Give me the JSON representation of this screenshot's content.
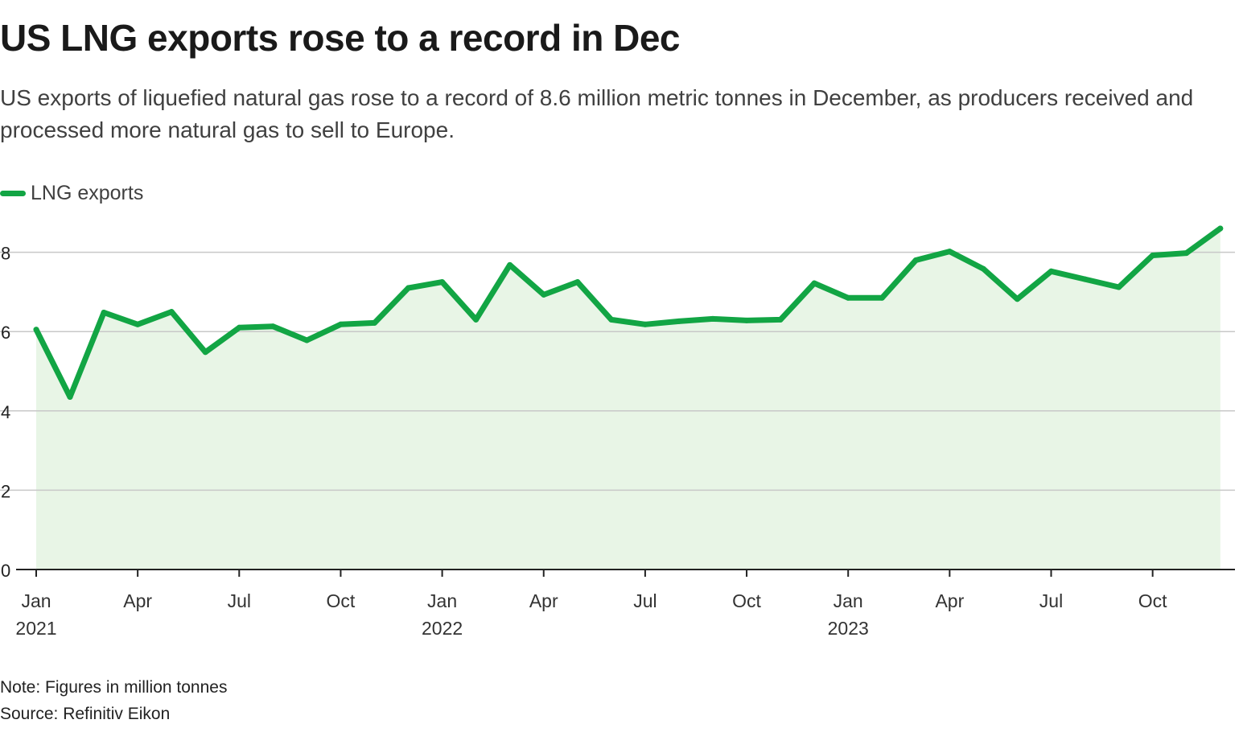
{
  "title": "US LNG exports rose to a record in Dec",
  "subtitle": "US exports of liquefied natural gas rose to a record of 8.6 million metric tonnes in December, as producers received and processed more natural gas to sell to Europe.",
  "note": "Note: Figures in million tonnes",
  "source": "Source: Refinitiv Eikon",
  "colors": {
    "line": "#12a544",
    "area": "#e8f5e6",
    "grid": "#c8c8c8",
    "axis": "#222222"
  },
  "chart_data": {
    "type": "line",
    "title": "US LNG exports rose to a record in Dec",
    "xlabel": "",
    "ylabel": "",
    "ylim": [
      0,
      8.6
    ],
    "yticks": [
      0,
      2,
      4,
      6,
      8
    ],
    "series": [
      {
        "name": "LNG exports",
        "values": [
          6.05,
          4.35,
          6.48,
          6.18,
          6.5,
          5.48,
          6.1,
          6.13,
          5.78,
          6.18,
          6.22,
          7.1,
          7.25,
          6.3,
          7.68,
          6.93,
          7.25,
          6.3,
          6.18,
          6.26,
          6.32,
          6.28,
          6.3,
          7.22,
          6.85,
          6.85,
          7.8,
          8.02,
          7.58,
          6.82,
          7.52,
          7.32,
          7.12,
          7.92,
          7.98,
          8.6
        ]
      }
    ],
    "x_tick_labels": [
      {
        "index": 0,
        "month": "Jan",
        "year": "2021"
      },
      {
        "index": 3,
        "month": "Apr"
      },
      {
        "index": 6,
        "month": "Jul"
      },
      {
        "index": 9,
        "month": "Oct"
      },
      {
        "index": 12,
        "month": "Jan",
        "year": "2022"
      },
      {
        "index": 15,
        "month": "Apr"
      },
      {
        "index": 18,
        "month": "Jul"
      },
      {
        "index": 21,
        "month": "Oct"
      },
      {
        "index": 24,
        "month": "Jan",
        "year": "2023"
      },
      {
        "index": 27,
        "month": "Apr"
      },
      {
        "index": 30,
        "month": "Jul"
      },
      {
        "index": 33,
        "month": "Oct"
      }
    ]
  }
}
